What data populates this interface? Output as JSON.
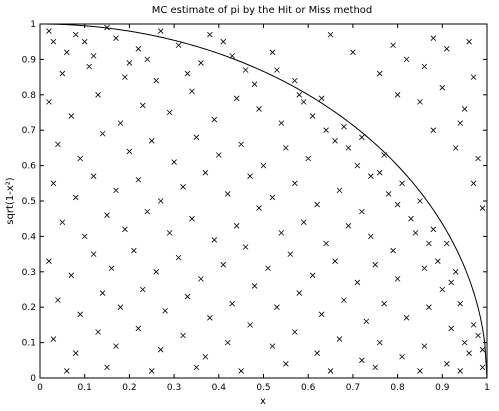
{
  "chart_data": {
    "type": "scatter",
    "title": "MC estimate of pi by the Hit or Miss method",
    "xlabel": "x",
    "ylabel": "sqrt(1-x²)",
    "xlim": [
      0,
      1
    ],
    "ylim": [
      0,
      1
    ],
    "x_ticks": [
      "0",
      "0.1",
      "0.2",
      "0.3",
      "0.4",
      "0.5",
      "0.6",
      "0.7",
      "0.8",
      "0.9",
      "1"
    ],
    "y_ticks": [
      "0",
      "0.1",
      "0.2",
      "0.3",
      "0.4",
      "0.5",
      "0.6",
      "0.7",
      "0.8",
      "0.9",
      "1"
    ],
    "grid": false,
    "legend": "none",
    "series": [
      {
        "marker": "x",
        "color": "#000000",
        "points": [
          [
            0.03,
            0.95
          ],
          [
            0.08,
            0.97
          ],
          [
            0.12,
            0.91
          ],
          [
            0.17,
            0.96
          ],
          [
            0.22,
            0.93
          ],
          [
            0.27,
            0.98
          ],
          [
            0.05,
            0.86
          ],
          [
            0.11,
            0.88
          ],
          [
            0.19,
            0.85
          ],
          [
            0.24,
            0.9
          ],
          [
            0.31,
            0.94
          ],
          [
            0.36,
            0.89
          ],
          [
            0.41,
            0.95
          ],
          [
            0.46,
            0.87
          ],
          [
            0.52,
            0.92
          ],
          [
            0.57,
            0.84
          ],
          [
            0.63,
            0.79
          ],
          [
            0.68,
            0.71
          ],
          [
            0.72,
            0.68
          ],
          [
            0.77,
            0.63
          ],
          [
            0.02,
            0.78
          ],
          [
            0.07,
            0.74
          ],
          [
            0.13,
            0.8
          ],
          [
            0.18,
            0.72
          ],
          [
            0.23,
            0.77
          ],
          [
            0.29,
            0.75
          ],
          [
            0.34,
            0.81
          ],
          [
            0.39,
            0.73
          ],
          [
            0.44,
            0.79
          ],
          [
            0.49,
            0.76
          ],
          [
            0.54,
            0.72
          ],
          [
            0.59,
            0.78
          ],
          [
            0.64,
            0.7
          ],
          [
            0.04,
            0.66
          ],
          [
            0.09,
            0.62
          ],
          [
            0.14,
            0.69
          ],
          [
            0.2,
            0.64
          ],
          [
            0.25,
            0.67
          ],
          [
            0.3,
            0.61
          ],
          [
            0.35,
            0.68
          ],
          [
            0.4,
            0.63
          ],
          [
            0.45,
            0.66
          ],
          [
            0.5,
            0.6
          ],
          [
            0.55,
            0.65
          ],
          [
            0.6,
            0.62
          ],
          [
            0.66,
            0.67
          ],
          [
            0.71,
            0.6
          ],
          [
            0.76,
            0.58
          ],
          [
            0.81,
            0.55
          ],
          [
            0.85,
            0.5
          ],
          [
            0.03,
            0.55
          ],
          [
            0.08,
            0.51
          ],
          [
            0.12,
            0.57
          ],
          [
            0.17,
            0.53
          ],
          [
            0.22,
            0.56
          ],
          [
            0.27,
            0.5
          ],
          [
            0.32,
            0.54
          ],
          [
            0.37,
            0.58
          ],
          [
            0.42,
            0.52
          ],
          [
            0.47,
            0.57
          ],
          [
            0.52,
            0.51
          ],
          [
            0.57,
            0.55
          ],
          [
            0.62,
            0.49
          ],
          [
            0.67,
            0.53
          ],
          [
            0.72,
            0.47
          ],
          [
            0.78,
            0.52
          ],
          [
            0.83,
            0.45
          ],
          [
            0.88,
            0.42
          ],
          [
            0.91,
            0.38
          ],
          [
            0.05,
            0.44
          ],
          [
            0.1,
            0.4
          ],
          [
            0.15,
            0.46
          ],
          [
            0.19,
            0.42
          ],
          [
            0.24,
            0.47
          ],
          [
            0.29,
            0.41
          ],
          [
            0.34,
            0.45
          ],
          [
            0.39,
            0.39
          ],
          [
            0.44,
            0.43
          ],
          [
            0.49,
            0.48
          ],
          [
            0.54,
            0.41
          ],
          [
            0.59,
            0.44
          ],
          [
            0.64,
            0.38
          ],
          [
            0.69,
            0.43
          ],
          [
            0.74,
            0.4
          ],
          [
            0.79,
            0.36
          ],
          [
            0.84,
            0.41
          ],
          [
            0.89,
            0.33
          ],
          [
            0.93,
            0.3
          ],
          [
            0.02,
            0.33
          ],
          [
            0.07,
            0.29
          ],
          [
            0.12,
            0.35
          ],
          [
            0.16,
            0.31
          ],
          [
            0.21,
            0.36
          ],
          [
            0.26,
            0.3
          ],
          [
            0.31,
            0.34
          ],
          [
            0.36,
            0.28
          ],
          [
            0.41,
            0.32
          ],
          [
            0.46,
            0.37
          ],
          [
            0.51,
            0.31
          ],
          [
            0.56,
            0.35
          ],
          [
            0.61,
            0.29
          ],
          [
            0.66,
            0.33
          ],
          [
            0.71,
            0.27
          ],
          [
            0.75,
            0.32
          ],
          [
            0.8,
            0.28
          ],
          [
            0.86,
            0.31
          ],
          [
            0.9,
            0.25
          ],
          [
            0.94,
            0.21
          ],
          [
            0.97,
            0.15
          ],
          [
            0.04,
            0.22
          ],
          [
            0.09,
            0.18
          ],
          [
            0.14,
            0.24
          ],
          [
            0.18,
            0.2
          ],
          [
            0.23,
            0.25
          ],
          [
            0.28,
            0.19
          ],
          [
            0.33,
            0.23
          ],
          [
            0.38,
            0.17
          ],
          [
            0.43,
            0.21
          ],
          [
            0.48,
            0.26
          ],
          [
            0.53,
            0.2
          ],
          [
            0.58,
            0.24
          ],
          [
            0.63,
            0.18
          ],
          [
            0.68,
            0.22
          ],
          [
            0.73,
            0.16
          ],
          [
            0.77,
            0.21
          ],
          [
            0.82,
            0.17
          ],
          [
            0.87,
            0.2
          ],
          [
            0.92,
            0.14
          ],
          [
            0.95,
            0.1
          ],
          [
            0.03,
            0.11
          ],
          [
            0.08,
            0.07
          ],
          [
            0.13,
            0.13
          ],
          [
            0.17,
            0.09
          ],
          [
            0.22,
            0.14
          ],
          [
            0.27,
            0.08
          ],
          [
            0.32,
            0.12
          ],
          [
            0.37,
            0.06
          ],
          [
            0.42,
            0.1
          ],
          [
            0.47,
            0.15
          ],
          [
            0.52,
            0.09
          ],
          [
            0.57,
            0.13
          ],
          [
            0.62,
            0.07
          ],
          [
            0.67,
            0.11
          ],
          [
            0.72,
            0.05
          ],
          [
            0.76,
            0.1
          ],
          [
            0.81,
            0.06
          ],
          [
            0.86,
            0.09
          ],
          [
            0.91,
            0.04
          ],
          [
            0.96,
            0.07
          ],
          [
            0.99,
            0.03
          ],
          [
            0.06,
            0.02
          ],
          [
            0.15,
            0.03
          ],
          [
            0.25,
            0.02
          ],
          [
            0.35,
            0.03
          ],
          [
            0.45,
            0.02
          ],
          [
            0.55,
            0.04
          ],
          [
            0.65,
            0.02
          ],
          [
            0.75,
            0.03
          ],
          [
            0.85,
            0.02
          ],
          [
            0.94,
            0.02
          ],
          [
            0.8,
            0.8
          ],
          [
            0.85,
            0.78
          ],
          [
            0.9,
            0.82
          ],
          [
            0.95,
            0.76
          ],
          [
            0.88,
            0.7
          ],
          [
            0.93,
            0.65
          ],
          [
            0.97,
            0.85
          ],
          [
            0.82,
            0.9
          ],
          [
            0.91,
            0.93
          ],
          [
            0.96,
            0.95
          ],
          [
            0.86,
            0.88
          ],
          [
            0.94,
            0.72
          ],
          [
            0.98,
            0.62
          ],
          [
            0.99,
            0.48
          ],
          [
            0.97,
            0.55
          ],
          [
            0.76,
            0.86
          ],
          [
            0.7,
            0.92
          ],
          [
            0.65,
            0.97
          ],
          [
            0.79,
            0.94
          ],
          [
            0.88,
            0.96
          ],
          [
            0.02,
            0.98
          ],
          [
            0.06,
            0.92
          ],
          [
            0.1,
            0.95
          ],
          [
            0.15,
            0.99
          ],
          [
            0.2,
            0.89
          ],
          [
            0.26,
            0.84
          ],
          [
            0.33,
            0.86
          ],
          [
            0.38,
            0.97
          ],
          [
            0.43,
            0.91
          ],
          [
            0.48,
            0.83
          ],
          [
            0.53,
            0.87
          ],
          [
            0.58,
            0.8
          ],
          [
            0.61,
            0.74
          ],
          [
            0.69,
            0.65
          ],
          [
            0.74,
            0.57
          ],
          [
            0.8,
            0.49
          ],
          [
            0.87,
            0.38
          ],
          [
            0.92,
            0.27
          ],
          [
            0.98,
            0.12
          ],
          [
            0.99,
            0.08
          ]
        ]
      },
      {
        "type": "line",
        "function": "y = sqrt(1 - x^2)",
        "color": "#000000"
      }
    ]
  }
}
